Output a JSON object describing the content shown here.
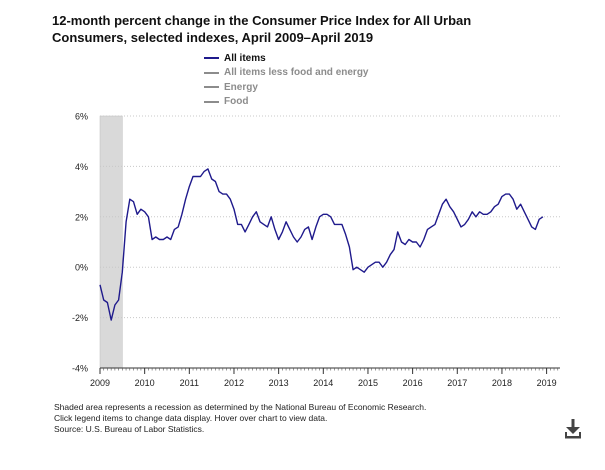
{
  "title_line1": "12-month percent change in the Consumer Price Index for All Urban",
  "title_line2": "Consumers, selected indexes, April 2009–April 2019",
  "legend": [
    {
      "label": "All items",
      "color": "#1f1a8c",
      "active": true
    },
    {
      "label": "All items less food and energy",
      "color": "#8c8c8c",
      "active": false
    },
    {
      "label": "Energy",
      "color": "#8c8c8c",
      "active": false
    },
    {
      "label": "Food",
      "color": "#8c8c8c",
      "active": false
    }
  ],
  "notes": {
    "line1": "Shaded area represents a recession as determined by the National Bureau of Economic Research.",
    "line2": "Click legend items to change data display. Hover over chart to view data.",
    "line3": "Source: U.S. Bureau of Labor Statistics."
  },
  "download_icon": "download-icon",
  "chart_data": {
    "type": "line",
    "title": "12-month percent change in the Consumer Price Index for All Urban Consumers, selected indexes, April 2009–April 2019",
    "xlabel": "",
    "ylabel": "",
    "y_ticks": [
      "-4%",
      "-2%",
      "0%",
      "2%",
      "4%",
      "6%"
    ],
    "y_tick_values": [
      -4,
      -2,
      0,
      2,
      4,
      6
    ],
    "ylim": [
      -4,
      6
    ],
    "x_ticks": [
      "2009",
      "2010",
      "2011",
      "2012",
      "2013",
      "2014",
      "2015",
      "2016",
      "2017",
      "2018",
      "2019"
    ],
    "x_tick_values": [
      2009,
      2010,
      2011,
      2012,
      2013,
      2014,
      2015,
      2016,
      2017,
      2018,
      2019
    ],
    "xlim": [
      2009,
      2019.3
    ],
    "recession": [
      2009.0,
      2009.5
    ],
    "series": [
      {
        "name": "All items",
        "start_year": 2009,
        "start_month": 1,
        "values": [
          -0.7,
          -1.3,
          -1.4,
          -2.1,
          -1.5,
          -1.3,
          -0.2,
          1.8,
          2.7,
          2.6,
          2.1,
          2.3,
          2.2,
          2.0,
          1.1,
          1.2,
          1.1,
          1.1,
          1.2,
          1.1,
          1.5,
          1.6,
          2.1,
          2.7,
          3.2,
          3.6,
          3.6,
          3.6,
          3.8,
          3.9,
          3.5,
          3.4,
          3.0,
          2.9,
          2.9,
          2.7,
          2.3,
          1.7,
          1.7,
          1.4,
          1.7,
          2.0,
          2.2,
          1.8,
          1.7,
          1.6,
          2.0,
          1.5,
          1.1,
          1.4,
          1.8,
          1.5,
          1.2,
          1.0,
          1.2,
          1.5,
          1.6,
          1.1,
          1.6,
          2.0,
          2.1,
          2.1,
          2.0,
          1.7,
          1.7,
          1.7,
          1.3,
          0.8,
          -0.1,
          0.0,
          -0.1,
          -0.2,
          0.0,
          0.1,
          0.2,
          0.2,
          0.0,
          0.2,
          0.5,
          0.7,
          1.4,
          1.0,
          0.9,
          1.1,
          1.0,
          1.0,
          0.8,
          1.1,
          1.5,
          1.6,
          1.7,
          2.1,
          2.5,
          2.7,
          2.4,
          2.2,
          1.9,
          1.6,
          1.7,
          1.9,
          2.2,
          2.0,
          2.2,
          2.1,
          2.1,
          2.2,
          2.4,
          2.5,
          2.8,
          2.9,
          2.9,
          2.7,
          2.3,
          2.5,
          2.2,
          1.9,
          1.6,
          1.5,
          1.9,
          2.0
        ]
      }
    ]
  }
}
